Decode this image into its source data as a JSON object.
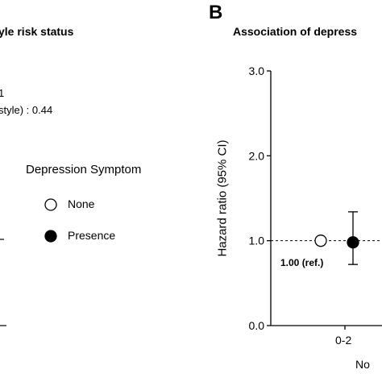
{
  "panel_a": {
    "title_fragment": "yle risk status",
    "text_line_1": "1",
    "text_line_2": "style) : 0.44",
    "legend": {
      "title": "Depression Symptom",
      "items": [
        {
          "label": "None",
          "marker": "open-circle"
        },
        {
          "label": "Presence",
          "marker": "filled-circle"
        }
      ]
    }
  },
  "panel_b": {
    "letter": "B",
    "title_fragment": "Association of depress",
    "ref_label": "1.00 (ref.)",
    "x_axis_label_fragment": "No"
  },
  "chart_data": {
    "type": "scatter",
    "title": "Association of depress",
    "ylabel": "Hazard ratio (95% CI)",
    "xlabel": "No",
    "ylim": [
      0.0,
      3.0
    ],
    "yticks": [
      "0.0",
      "1.0",
      "2.0",
      "3.0"
    ],
    "categories": [
      "0-2"
    ],
    "reference_line": 1.0,
    "series": [
      {
        "name": "None",
        "marker": "open-circle",
        "values": [
          1.0
        ],
        "ci_low": [
          null
        ],
        "ci_high": [
          null
        ]
      },
      {
        "name": "Presence",
        "marker": "filled-circle",
        "values": [
          0.98
        ],
        "ci_low": [
          0.72
        ],
        "ci_high": [
          1.34
        ]
      }
    ],
    "colors": {
      "axis": "#000000",
      "open_fill": "#ffffff",
      "filled_fill": "#000000"
    }
  }
}
